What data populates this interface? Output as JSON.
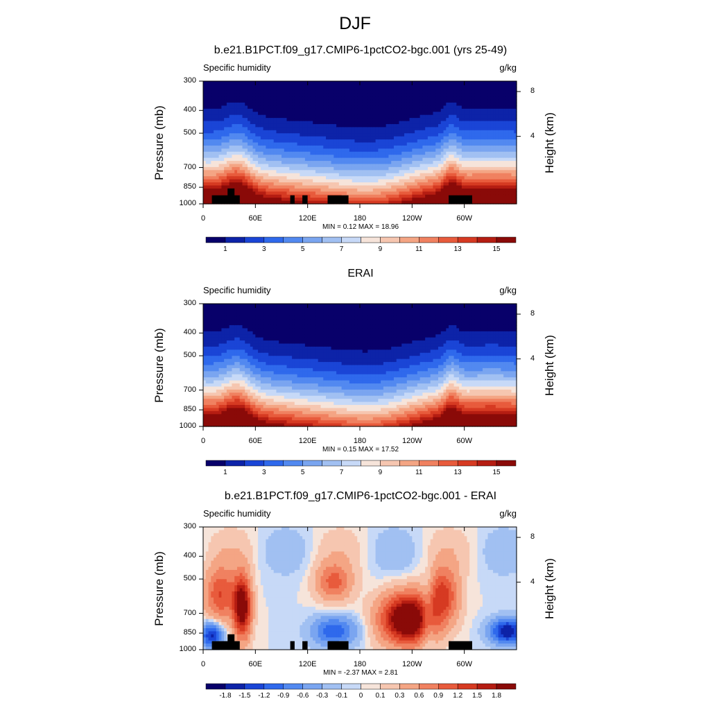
{
  "figure_title": "DJF",
  "chart_data": [
    {
      "type": "heatmap",
      "title": "b.e21.B1PCT.f09_g17.CMIP6-1pctCO2-bgc.001 (yrs 25-49)",
      "left_label": "Specific humidity",
      "right_label": "g/kg",
      "ylabel": "Pressure (mb)",
      "ylabel_right": "Height (km)",
      "x": [
        0,
        60,
        120,
        180,
        240,
        300
      ],
      "x_tick_labels": [
        "0",
        "60E",
        "120E",
        "180",
        "120W",
        "60W"
      ],
      "y_pressure_ticks": [
        300,
        400,
        500,
        700,
        850,
        1000
      ],
      "y_height_ticks": [
        4,
        8
      ],
      "min_max_text": "MIN =   0.12  MAX =  18.96",
      "colorbar_levels": [
        0,
        1,
        2,
        3,
        4,
        5,
        6,
        7,
        8,
        9,
        10,
        11,
        12,
        13,
        14,
        15,
        16
      ],
      "colorbar_labels": [
        "1",
        "3",
        "5",
        "7",
        "9",
        "11",
        "13",
        "15"
      ],
      "min": 0.12,
      "max": 18.96,
      "field": "model",
      "masked_topography": true
    },
    {
      "type": "heatmap",
      "title": "ERAI",
      "left_label": "Specific humidity",
      "right_label": "g/kg",
      "ylabel": "Pressure (mb)",
      "ylabel_right": "Height (km)",
      "x": [
        0,
        60,
        120,
        180,
        240,
        300
      ],
      "x_tick_labels": [
        "0",
        "60E",
        "120E",
        "180",
        "120W",
        "60W"
      ],
      "y_pressure_ticks": [
        300,
        400,
        500,
        700,
        850,
        1000
      ],
      "y_height_ticks": [
        4,
        8
      ],
      "min_max_text": "MIN =   0.15  MAX =  17.52",
      "colorbar_levels": [
        0,
        1,
        2,
        3,
        4,
        5,
        6,
        7,
        8,
        9,
        10,
        11,
        12,
        13,
        14,
        15,
        16
      ],
      "colorbar_labels": [
        "1",
        "3",
        "5",
        "7",
        "9",
        "11",
        "13",
        "15"
      ],
      "min": 0.15,
      "max": 17.52,
      "field": "obs",
      "masked_topography": false
    },
    {
      "type": "heatmap",
      "title": "b.e21.B1PCT.f09_g17.CMIP6-1pctCO2-bgc.001 - ERAI",
      "left_label": "Specific humidity",
      "right_label": "g/kg",
      "ylabel": "Pressure (mb)",
      "ylabel_right": "Height (km)",
      "x": [
        0,
        60,
        120,
        180,
        240,
        300
      ],
      "x_tick_labels": [
        "0",
        "60E",
        "120E",
        "180",
        "120W",
        "60W"
      ],
      "y_pressure_ticks": [
        300,
        400,
        500,
        700,
        850,
        1000
      ],
      "y_height_ticks": [
        4,
        8
      ],
      "min_max_text": "MIN =  -2.37  MAX =   2.81",
      "colorbar_levels": [
        -2.1,
        -1.8,
        -1.5,
        -1.2,
        -0.9,
        -0.6,
        -0.3,
        -0.1,
        0,
        0.1,
        0.3,
        0.6,
        0.9,
        1.2,
        1.5,
        1.8,
        2.1
      ],
      "colorbar_labels": [
        "-1.8",
        "-1.5",
        "-1.2",
        "-0.9",
        "-0.6",
        "-0.3",
        "-0.1",
        "0",
        "0.1",
        "0.3",
        "0.6",
        "0.9",
        "1.2",
        "1.5",
        "1.8"
      ],
      "min": -2.37,
      "max": 2.81,
      "field": "diff",
      "masked_topography": true
    }
  ],
  "colormap": [
    "#08006a",
    "#0d23a8",
    "#1a45d6",
    "#2f69ec",
    "#5289f0",
    "#7aa5f0",
    "#a1c0f2",
    "#c7d9f7",
    "#f6e4da",
    "#f6c6b0",
    "#f4a584",
    "#f08160",
    "#e85b3c",
    "#d63a22",
    "#b51d12",
    "#8a0a08"
  ]
}
